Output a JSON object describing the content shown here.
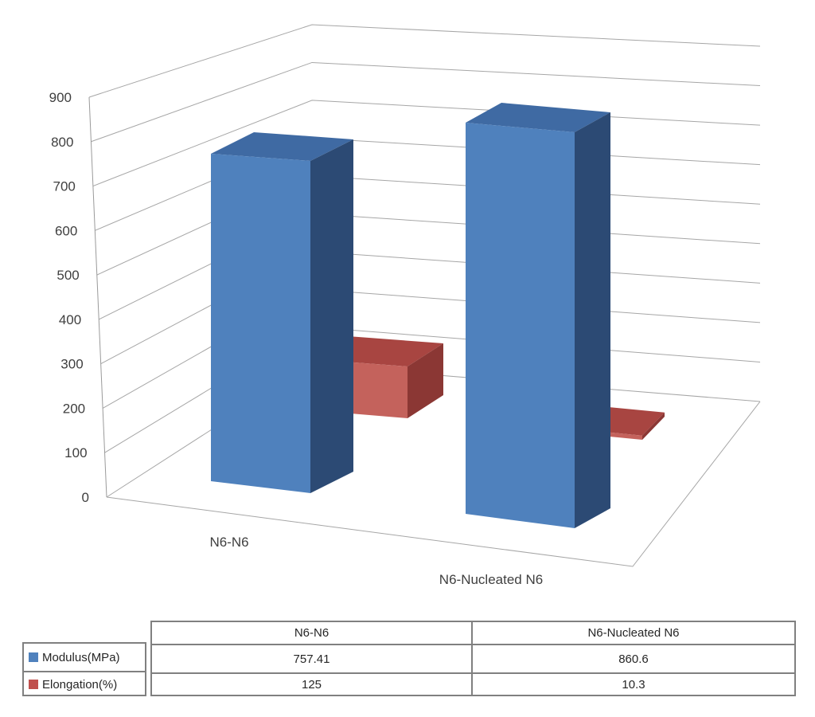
{
  "chart_data": {
    "type": "bar",
    "subtype": "3d-clustered-column",
    "title": "",
    "xlabel": "",
    "ylabel": "",
    "categories": [
      "N6-N6",
      "N6-Nucleated N6"
    ],
    "series": [
      {
        "name": "Modulus(MPa)",
        "values": [
          757.41,
          860.6
        ],
        "swatch": "#4f81bd",
        "faces": {
          "front": "#4f81bd",
          "top": "#3f6aa3",
          "side": "#2c4a74"
        }
      },
      {
        "name": "Elongation(%)",
        "values": [
          125,
          10.3
        ],
        "swatch": "#c0504d",
        "faces": {
          "front": "#c4625c",
          "top": "#a84541",
          "side": "#8b3734"
        }
      }
    ],
    "ylim": [
      0,
      900
    ],
    "ytick_step": 100,
    "yticks": [
      0,
      100,
      200,
      300,
      400,
      500,
      600,
      700,
      800,
      900
    ],
    "grid": true,
    "legend_position": "table-left",
    "colors": {
      "gridline": "#a6a6a6",
      "axis_line": "#9a9a9a",
      "axis_text": "#3f3f3f"
    }
  },
  "data_table": {
    "columns": [
      "N6-N6",
      "N6-Nucleated N6"
    ],
    "rows": [
      {
        "label": "Modulus(MPa)",
        "swatch": "#4f81bd",
        "values": [
          "757.41",
          "860.6"
        ]
      },
      {
        "label": "Elongation(%)",
        "swatch": "#c0504d",
        "values": [
          "125",
          "10.3"
        ]
      }
    ],
    "border_color": "#808080",
    "text_color": "#262626"
  }
}
